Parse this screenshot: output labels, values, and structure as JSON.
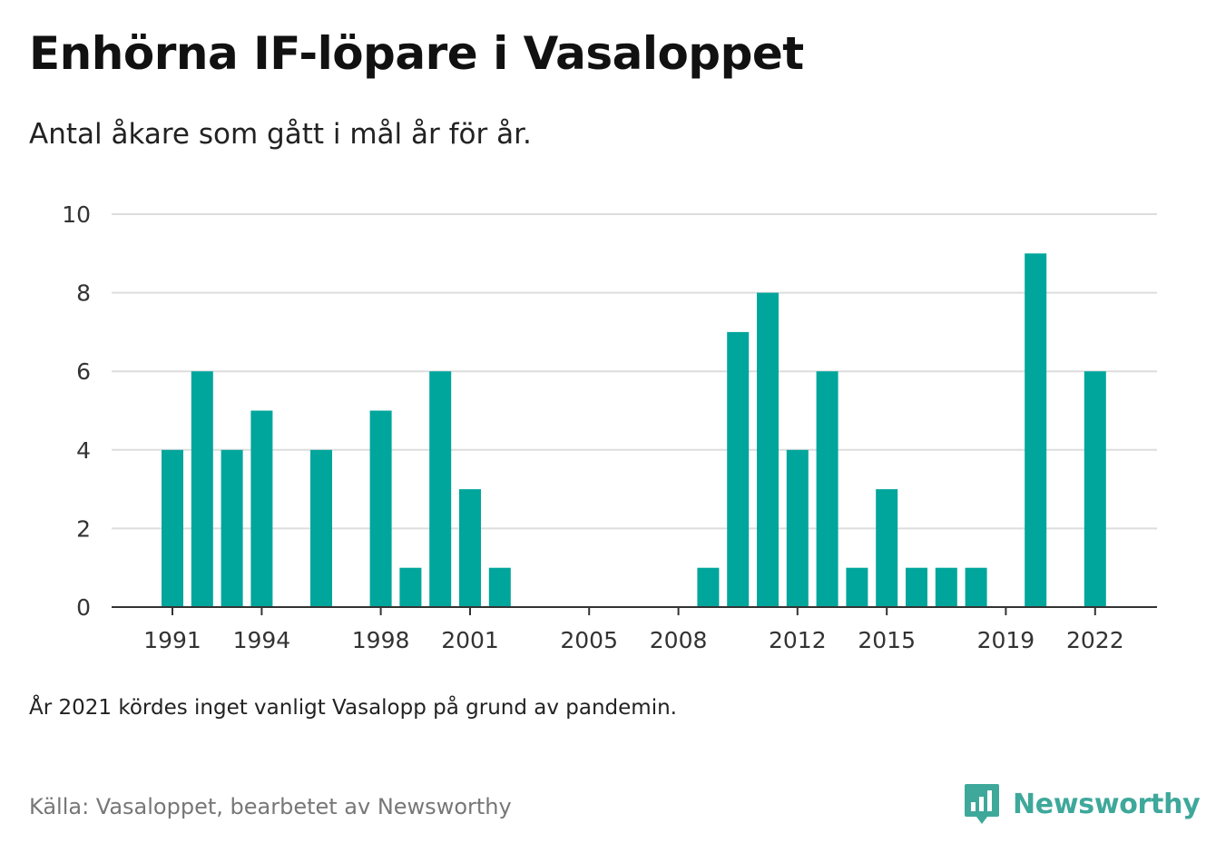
{
  "header": {
    "title": "Enhörna IF-löpare i Vasaloppet",
    "subtitle": "Antal åkare som gått i mål år för år."
  },
  "footer": {
    "note": "År 2021 kördes inget vanligt Vasalopp på grund av pandemin.",
    "source": "Källa: Vasaloppet, bearbetet av Newsworthy",
    "brand": "Newsworthy",
    "brand_icon": "bar-chart-speech-bubble-icon"
  },
  "colors": {
    "bar": "#00a59c",
    "grid": "#dddddd",
    "axis": "#333333",
    "brand": "#3ea89b"
  },
  "chart_data": {
    "type": "bar",
    "title": "Enhörna IF-löpare i Vasaloppet",
    "subtitle": "Antal åkare som gått i mål år för år.",
    "xlabel": "",
    "ylabel": "",
    "ylim": [
      0,
      10
    ],
    "yticks": [
      0,
      2,
      4,
      6,
      8,
      10
    ],
    "xtick_labels": [
      "1991",
      "1994",
      "1998",
      "2001",
      "2005",
      "2008",
      "2012",
      "2015",
      "2019",
      "2022"
    ],
    "grid": true,
    "categories": [
      "1991",
      "1992",
      "1993",
      "1994",
      "1995",
      "1996",
      "1997",
      "1998",
      "1999",
      "2000",
      "2001",
      "2002",
      "2003",
      "2004",
      "2005",
      "2006",
      "2007",
      "2008",
      "2009",
      "2010",
      "2011",
      "2012",
      "2013",
      "2014",
      "2015",
      "2016",
      "2017",
      "2018",
      "2019",
      "2020",
      "2021",
      "2022"
    ],
    "values": [
      4,
      6,
      4,
      5,
      0,
      4,
      0,
      5,
      1,
      6,
      3,
      1,
      0,
      0,
      0,
      0,
      0,
      0,
      1,
      7,
      8,
      4,
      6,
      1,
      3,
      1,
      1,
      1,
      0,
      9,
      0,
      6
    ]
  }
}
